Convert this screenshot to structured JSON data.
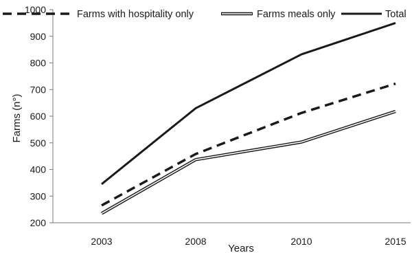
{
  "chart_data": {
    "type": "line",
    "categories": [
      "2003",
      "2008",
      "2010",
      "2015"
    ],
    "series": [
      {
        "name": "Farms with hospitality only",
        "values": [
          265,
          458,
          612,
          722
        ],
        "style": "dashed",
        "color": "#1a1a1a"
      },
      {
        "name": "Farms meals only",
        "values": [
          235,
          437,
          503,
          618
        ],
        "style": "double",
        "color": "#1a1a1a"
      },
      {
        "name": "Total",
        "values": [
          345,
          630,
          832,
          950
        ],
        "style": "solid",
        "color": "#1a1a1a"
      }
    ],
    "xlabel": "Years",
    "ylabel": "Farms (n°)",
    "ylim": [
      200,
      1000
    ],
    "yticks": [
      200,
      300,
      400,
      500,
      600,
      700,
      800,
      900,
      1000
    ],
    "grid": false,
    "legend_position": "top"
  }
}
